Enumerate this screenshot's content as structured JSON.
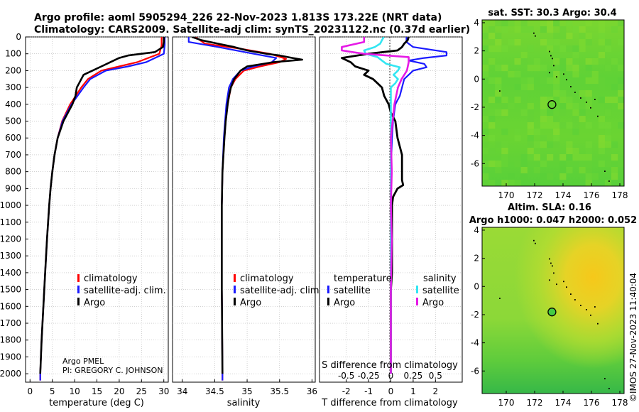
{
  "figure": {
    "title_line1": "Argo profile: aoml 5905294_226 22-Nov-2023 1.813S 173.22E (NRT data)",
    "title_line2": "Climatology: CARS2009. Satellite-adj clim: synTS_20231122.nc (0.37d earlier)",
    "timestamp": "©IMOS 27-Nov-2023 11:40:04",
    "credit_line1": "Argo PMEL",
    "credit_line2": "PI: GREGORY C. JOHNSON"
  },
  "colors": {
    "climatology": "#ff0000",
    "satellite_adj": "#1a1aff",
    "argo": "#000000",
    "s_satellite": "#33e6f2",
    "s_argo": "#e61ae6"
  },
  "chart_data": [
    {
      "type": "line",
      "title": "",
      "xlabel": "temperature (deg C)",
      "ylabel": "",
      "xlim": [
        -1,
        31
      ],
      "ylim": [
        2050,
        0
      ],
      "xticks": [
        "0",
        "5",
        "10",
        "15",
        "20",
        "25",
        "30"
      ],
      "xtick_values": [
        0,
        5,
        10,
        15,
        20,
        25,
        30
      ],
      "yticks": [
        "0",
        "100",
        "200",
        "300",
        "400",
        "500",
        "600",
        "700",
        "800",
        "900",
        "1000",
        "1100",
        "1200",
        "1300",
        "1400",
        "1500",
        "1600",
        "1700",
        "1800",
        "1900",
        "2000"
      ],
      "ytick_values": [
        0,
        100,
        200,
        300,
        400,
        500,
        600,
        700,
        800,
        900,
        1000,
        1100,
        1200,
        1300,
        1400,
        1500,
        1600,
        1700,
        1800,
        1900,
        2000
      ],
      "legend": [
        "climatology",
        "satellite-adj. clim.",
        "Argo"
      ],
      "series": [
        {
          "name": "climatology",
          "depth": [
            0,
            50,
            100,
            150,
            175,
            200,
            250,
            300,
            400,
            500,
            600,
            700,
            800,
            900,
            1000,
            1200,
            1400,
            1600,
            1800,
            2000,
            2040
          ],
          "values": [
            29.5,
            29.5,
            29,
            24,
            20,
            16,
            13,
            11.5,
            9,
            7.2,
            6.2,
            5.5,
            5,
            4.6,
            4.3,
            3.8,
            3.4,
            3,
            2.6,
            2.3,
            2.3
          ]
        },
        {
          "name": "satellite-adj. clim.",
          "depth": [
            0,
            50,
            100,
            150,
            175,
            200,
            250,
            300,
            400,
            500,
            600,
            700,
            800,
            900,
            1000,
            1200,
            1400,
            1600,
            1800,
            2000,
            2040
          ],
          "values": [
            30.2,
            30.2,
            30,
            26,
            22,
            17,
            13.5,
            12,
            9.3,
            7.3,
            6.2,
            5.5,
            5,
            4.6,
            4.3,
            3.8,
            3.4,
            3,
            2.6,
            2.3,
            2.3
          ]
        },
        {
          "name": "Argo",
          "depth": [
            0,
            30,
            60,
            90,
            100,
            110,
            125,
            150,
            175,
            200,
            225,
            250,
            275,
            300,
            350,
            400,
            450,
            500,
            600,
            700,
            800,
            900,
            1000,
            1200,
            1400,
            1600,
            1800,
            2000
          ],
          "values": [
            30,
            30,
            29.8,
            28,
            25,
            22,
            20,
            18,
            16,
            14,
            12,
            11.5,
            11,
            10.5,
            10.2,
            9.5,
            8.5,
            7.5,
            6.2,
            5.5,
            5,
            4.6,
            4.3,
            3.8,
            3.4,
            3,
            2.6,
            2.3
          ]
        }
      ]
    },
    {
      "type": "line",
      "title": "",
      "xlabel": "salinity",
      "ylabel": "",
      "xlim": [
        33.85,
        36.05
      ],
      "ylim": [
        2050,
        0
      ],
      "xticks": [
        "34",
        "34.5",
        "35",
        "35.5",
        "36"
      ],
      "xtick_values": [
        34,
        34.5,
        35,
        35.5,
        36
      ],
      "legend": [
        "climatology",
        "satellite-adj. clim.",
        "Argo"
      ],
      "series": [
        {
          "name": "climatology",
          "depth": [
            0,
            40,
            70,
            100,
            130,
            150,
            175,
            200,
            250,
            300,
            400,
            500,
            600,
            800,
            1000,
            1500,
            2000,
            2040
          ],
          "values": [
            34.2,
            34.35,
            34.9,
            35.35,
            35.6,
            35.5,
            35.2,
            34.95,
            34.82,
            34.75,
            34.7,
            34.67,
            34.65,
            34.62,
            34.61,
            34.61,
            34.62,
            34.62
          ]
        },
        {
          "name": "satellite-adj. clim.",
          "depth": [
            0,
            30,
            60,
            100,
            125,
            150,
            175,
            200,
            250,
            300,
            400,
            500,
            600,
            800,
            1000,
            1500,
            2000,
            2040
          ],
          "values": [
            34.1,
            34.1,
            34.55,
            35.1,
            35.45,
            35.38,
            35.1,
            34.9,
            34.78,
            34.72,
            34.68,
            34.66,
            34.64,
            34.62,
            34.61,
            34.61,
            34.62,
            34.62
          ]
        },
        {
          "name": "Argo",
          "depth": [
            0,
            20,
            40,
            60,
            80,
            100,
            110,
            125,
            135,
            150,
            175,
            200,
            250,
            300,
            350,
            400,
            500,
            600,
            800,
            1000,
            1500,
            2000
          ],
          "values": [
            34.15,
            34.3,
            34.55,
            34.8,
            35,
            35.3,
            35.5,
            35.7,
            35.85,
            35.4,
            35,
            34.9,
            34.8,
            34.75,
            34.72,
            34.7,
            34.67,
            34.65,
            34.62,
            34.61,
            34.61,
            34.62
          ]
        }
      ]
    },
    {
      "type": "line",
      "title": "",
      "xlabel": "T difference from climatology",
      "xlabel_top": "S difference from climatology",
      "ylabel": "",
      "xlim": [
        -3.2,
        3.2
      ],
      "ylim": [
        2050,
        0
      ],
      "xticks": [
        "-2",
        "-1",
        "0",
        "1",
        "2"
      ],
      "xtick_values": [
        -2,
        -1,
        0,
        1,
        2
      ],
      "s_xticks": [
        "-0.5",
        "-0.25",
        "0",
        "0.25",
        "0.5"
      ],
      "s_xtick_values": [
        -0.5,
        -0.25,
        0,
        0.25,
        0.5
      ],
      "legend_temperature_title": "temperature",
      "legend_salinity_title": "salinity",
      "legend_temperature": [
        "satellite",
        "Argo"
      ],
      "legend_salinity": [
        "satellite",
        "Argo"
      ],
      "series": [
        {
          "name": "T satellite",
          "depth": [
            0,
            30,
            60,
            90,
            110,
            125,
            140,
            160,
            180,
            200,
            250,
            300,
            350,
            400,
            500,
            600,
            800,
            1000,
            1500,
            2000
          ],
          "values": [
            0.7,
            0.7,
            1,
            2.5,
            2.5,
            1.5,
            0.8,
            1.5,
            1.6,
            1,
            0.6,
            0.5,
            0.4,
            0.2,
            0.1,
            0.05,
            0,
            0,
            0,
            0
          ]
        },
        {
          "name": "T Argo",
          "depth": [
            0,
            20,
            40,
            60,
            80,
            100,
            110,
            125,
            150,
            175,
            200,
            225,
            250,
            275,
            300,
            350,
            400,
            450,
            500,
            600,
            700,
            800,
            850,
            880,
            900,
            950,
            1000,
            1100,
            1200,
            1300,
            1400,
            1500,
            1600,
            1700,
            1800,
            1900,
            2000
          ],
          "values": [
            0.8,
            0.75,
            0.6,
            0.5,
            0.3,
            -1,
            -1.5,
            -2.2,
            -1.8,
            -1.6,
            -1,
            -1.2,
            -0.8,
            -0.6,
            -0.4,
            -0.3,
            -0.1,
            0,
            0.2,
            0.3,
            0.5,
            0.5,
            0.5,
            0.55,
            0.3,
            0.1,
            0.05,
            0.05,
            0.05,
            0.05,
            0.05,
            0,
            0,
            0,
            0,
            0,
            0
          ]
        },
        {
          "name": "S satellite",
          "depth": [
            0,
            20,
            40,
            60,
            80,
            100,
            120,
            140,
            160,
            180,
            200,
            225,
            250,
            275,
            300,
            350,
            400,
            500,
            600,
            800,
            1000,
            1500,
            2000
          ],
          "values": [
            -0.08,
            -0.1,
            -0.12,
            -0.18,
            -0.3,
            -0.28,
            -0.15,
            -0.1,
            -0.05,
            0.1,
            0.08,
            0.03,
            0.08,
            0.05,
            0,
            0,
            0,
            0,
            0,
            0,
            0,
            0,
            0
          ]
        },
        {
          "name": "S Argo",
          "depth": [
            0,
            30,
            60,
            80,
            100,
            120,
            150,
            200,
            250,
            300,
            350,
            400,
            500,
            600,
            800,
            1000,
            1200,
            1500,
            2000
          ],
          "values": [
            -0.3,
            -0.3,
            -0.55,
            -0.55,
            -0.3,
            0.2,
            0.2,
            0.18,
            0.12,
            0.08,
            0.06,
            0.04,
            0.02,
            0,
            0.01,
            0,
            0.01,
            0,
            0
          ]
        }
      ]
    },
    {
      "type": "heatmap",
      "title": "sat. SST: 30.3 Argo: 30.4",
      "xlim": [
        168.3,
        178.3
      ],
      "ylim": [
        -7.6,
        4.2
      ],
      "xticks": [
        "170",
        "172",
        "174",
        "176",
        "178"
      ],
      "xtick_values": [
        170,
        172,
        174,
        176,
        178
      ],
      "yticks": [
        "4",
        "2",
        "0",
        "-2",
        "-4",
        "-6"
      ],
      "ytick_values": [
        4,
        2,
        0,
        -2,
        -4,
        -6
      ],
      "argo_position": [
        173.22,
        -1.813
      ],
      "colormap": [
        "#22cc22",
        "#ffcc00"
      ]
    },
    {
      "type": "heatmap",
      "title_line1": "Altim. SLA: 0.16",
      "title_line2": "Argo h1000: 0.047 h2000: 0.052",
      "xlim": [
        168.3,
        178.3
      ],
      "ylim": [
        -7.6,
        4.2
      ],
      "xticks": [
        "170",
        "172",
        "174",
        "176",
        "178"
      ],
      "xtick_values": [
        170,
        172,
        174,
        176,
        178
      ],
      "yticks": [
        "4",
        "2",
        "0",
        "-2",
        "-4",
        "-6"
      ],
      "ytick_values": [
        4,
        2,
        0,
        -2,
        -4,
        -6
      ],
      "argo_position": [
        173.22,
        -1.813
      ],
      "colormap": [
        "#22cc22",
        "#ffcc00"
      ]
    }
  ]
}
